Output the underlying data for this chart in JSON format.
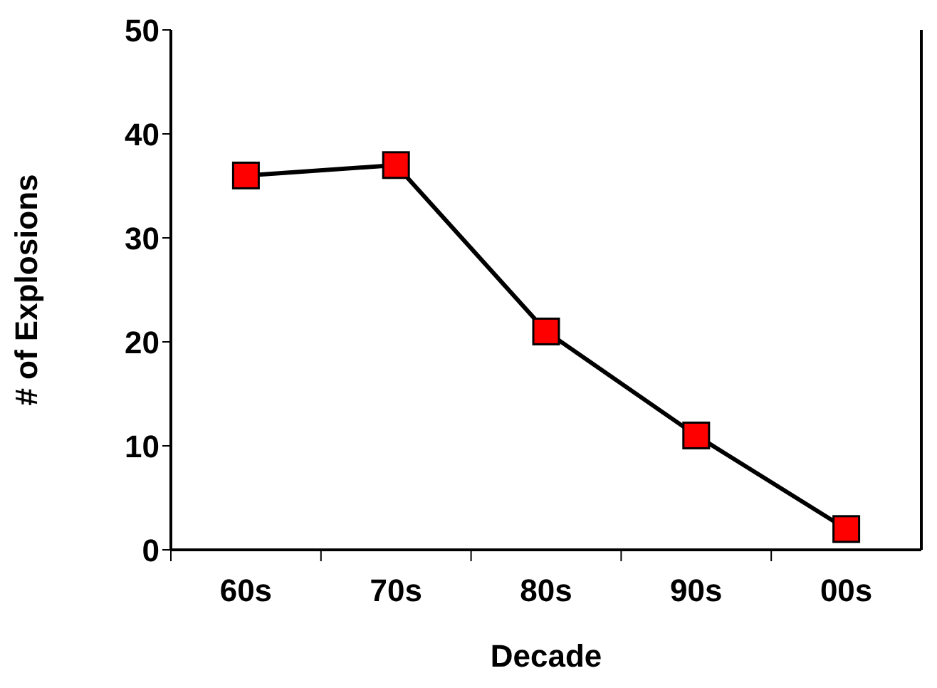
{
  "chart_data": {
    "type": "line",
    "xlabel": "Decade",
    "ylabel": "# of Explosions",
    "categories": [
      "60s",
      "70s",
      "80s",
      "90s",
      "00s"
    ],
    "series": [
      {
        "color": "#ff0000",
        "values": [
          36,
          37,
          21,
          11,
          2
        ]
      }
    ],
    "ylim": [
      0,
      50
    ],
    "yticks": [
      0,
      10,
      20,
      30,
      40,
      50
    ],
    "marker": "square",
    "line_style": "solid"
  }
}
